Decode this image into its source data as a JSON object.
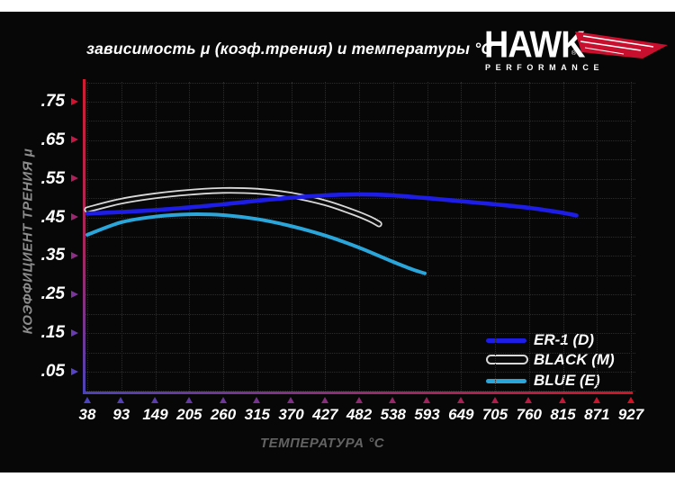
{
  "title": "зависимость μ (коэф.трения) и температуры °C",
  "logo": {
    "brand": "HAWK",
    "registered": "®",
    "subtitle": "PERFORMANCE",
    "wing_color": "#c8102e"
  },
  "y_axis": {
    "label": "КОЭФФИЦИЕНТ ТРЕНИЯ μ",
    "ticks": [
      ".75",
      ".65",
      ".55",
      ".45",
      ".35",
      ".25",
      ".15",
      ".05"
    ],
    "arrow_color_top": "#d41230",
    "arrow_color_bottom": "#5743c8"
  },
  "x_axis": {
    "label": "ТЕМПЕРАТУРА °C",
    "ticks": [
      "38",
      "93",
      "149",
      "205",
      "260",
      "315",
      "370",
      "427",
      "482",
      "538",
      "593",
      "649",
      "705",
      "760",
      "815",
      "871",
      "927"
    ],
    "arrow_color_left": "#4b43c0",
    "arrow_color_right": "#d41225"
  },
  "legend": [
    {
      "label": "ER-1 (D)",
      "color": "#1d1de5",
      "style": "line"
    },
    {
      "label": "BLACK (M)",
      "color": "#0b0b0b",
      "outline": "#d9d9d9",
      "style": "tube"
    },
    {
      "label": "BLUE (E)",
      "color": "#2aa6da",
      "style": "line"
    }
  ],
  "chart_data": {
    "type": "line",
    "title": "зависимость μ (коэф.трения) и температуры °C",
    "xlabel": "ТЕМПЕРАТУРА °C",
    "ylabel": "КОЭФФИЦИЕНТ ТРЕНИЯ μ",
    "x_ticks": [
      38,
      93,
      149,
      205,
      260,
      315,
      370,
      427,
      482,
      538,
      593,
      649,
      705,
      760,
      815,
      871,
      927
    ],
    "y_ticks": [
      0.05,
      0.15,
      0.25,
      0.35,
      0.45,
      0.55,
      0.65,
      0.75
    ],
    "xlim": [
      38,
      927
    ],
    "ylim": [
      0.0,
      0.8
    ],
    "grid": true,
    "legend_position": "lower right",
    "series": [
      {
        "name": "ER-1 (D)",
        "color": "#1d1de5",
        "width": 4.6,
        "points": [
          [
            38,
            0.46
          ],
          [
            93,
            0.464
          ],
          [
            149,
            0.469
          ],
          [
            205,
            0.476
          ],
          [
            260,
            0.484
          ],
          [
            315,
            0.493
          ],
          [
            370,
            0.501
          ],
          [
            427,
            0.507
          ],
          [
            482,
            0.51
          ],
          [
            538,
            0.507
          ],
          [
            593,
            0.5
          ],
          [
            649,
            0.492
          ],
          [
            705,
            0.484
          ],
          [
            760,
            0.475
          ],
          [
            815,
            0.462
          ],
          [
            838,
            0.455
          ]
        ]
      },
      {
        "name": "BLACK (M)",
        "color": "#0b0b0b",
        "outline": "#d9d9d9",
        "width": 3.6,
        "outline_width": 7.2,
        "points": [
          [
            38,
            0.47
          ],
          [
            93,
            0.492
          ],
          [
            149,
            0.506
          ],
          [
            205,
            0.515
          ],
          [
            260,
            0.52
          ],
          [
            315,
            0.518
          ],
          [
            370,
            0.508
          ],
          [
            427,
            0.488
          ],
          [
            470,
            0.465
          ],
          [
            500,
            0.446
          ],
          [
            515,
            0.433
          ]
        ]
      },
      {
        "name": "BLUE (E)",
        "color": "#2aa6da",
        "width": 4.0,
        "points": [
          [
            38,
            0.405
          ],
          [
            93,
            0.437
          ],
          [
            149,
            0.452
          ],
          [
            205,
            0.458
          ],
          [
            260,
            0.456
          ],
          [
            315,
            0.446
          ],
          [
            370,
            0.428
          ],
          [
            427,
            0.403
          ],
          [
            482,
            0.372
          ],
          [
            538,
            0.335
          ],
          [
            570,
            0.315
          ],
          [
            590,
            0.305
          ]
        ]
      }
    ]
  }
}
